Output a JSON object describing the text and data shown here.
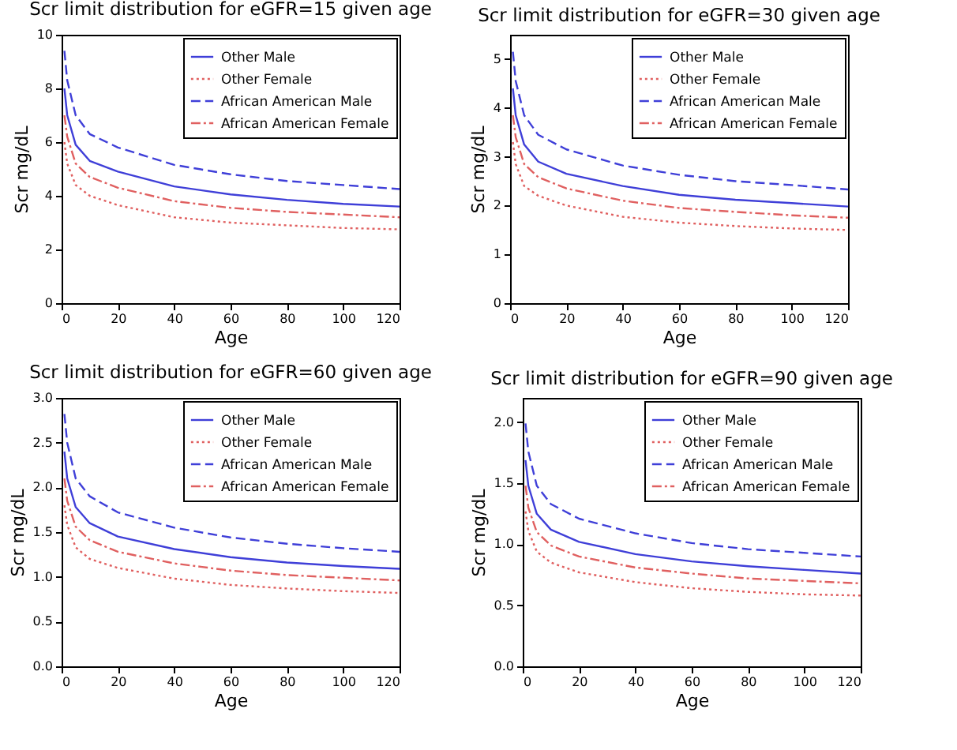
{
  "chart_data": [
    {
      "type": "line",
      "title": "Scr limit distribution for eGFR=15 given age",
      "xlabel": "Age",
      "ylabel": "Scr mg/dL",
      "x": [
        1,
        2,
        5,
        10,
        20,
        40,
        60,
        80,
        100,
        120
      ],
      "xlim": [
        0,
        120
      ],
      "xticks": [
        0,
        20,
        40,
        60,
        80,
        100,
        120
      ],
      "ylim": [
        0,
        10
      ],
      "yticks": [
        0,
        2,
        4,
        6,
        8,
        10
      ],
      "legend": "top right",
      "grid": false,
      "series": [
        {
          "name": "Other Male",
          "color": "#3f3fd8",
          "line_style": "solid",
          "values": [
            8.0,
            7.0,
            5.9,
            5.3,
            4.9,
            4.35,
            4.05,
            3.85,
            3.7,
            3.6
          ]
        },
        {
          "name": "Other Female",
          "color": "#e06060",
          "line_style": "dotted",
          "values": [
            6.0,
            5.2,
            4.4,
            4.0,
            3.65,
            3.2,
            3.0,
            2.9,
            2.8,
            2.75
          ]
        },
        {
          "name": "African American Male",
          "color": "#3f3fd8",
          "line_style": "dashed",
          "values": [
            9.4,
            8.3,
            7.0,
            6.3,
            5.8,
            5.15,
            4.8,
            4.55,
            4.4,
            4.25
          ]
        },
        {
          "name": "African American Female",
          "color": "#e06060",
          "line_style": "dashdot",
          "values": [
            7.0,
            6.2,
            5.2,
            4.7,
            4.3,
            3.8,
            3.55,
            3.4,
            3.3,
            3.2
          ]
        }
      ]
    },
    {
      "type": "line",
      "title": "Scr limit distribution for eGFR=30 given age",
      "xlabel": "Age",
      "ylabel": "Scr mg/dL",
      "x": [
        1,
        2,
        5,
        10,
        20,
        40,
        60,
        80,
        100,
        120
      ],
      "xlim": [
        0,
        120
      ],
      "xticks": [
        0,
        20,
        40,
        60,
        80,
        100,
        120
      ],
      "ylim": [
        0,
        5.5
      ],
      "yticks": [
        0,
        1,
        2,
        3,
        4,
        5
      ],
      "legend": "top right",
      "grid": false,
      "series": [
        {
          "name": "Other Male",
          "color": "#3f3fd8",
          "line_style": "solid",
          "values": [
            4.4,
            3.85,
            3.25,
            2.9,
            2.65,
            2.4,
            2.22,
            2.12,
            2.05,
            1.98
          ]
        },
        {
          "name": "Other Female",
          "color": "#e06060",
          "line_style": "dotted",
          "values": [
            3.3,
            2.85,
            2.4,
            2.2,
            2.0,
            1.77,
            1.65,
            1.58,
            1.53,
            1.5
          ]
        },
        {
          "name": "African American Male",
          "color": "#3f3fd8",
          "line_style": "dashed",
          "values": [
            5.15,
            4.55,
            3.85,
            3.45,
            3.15,
            2.82,
            2.63,
            2.5,
            2.42,
            2.33
          ]
        },
        {
          "name": "African American Female",
          "color": "#e06060",
          "line_style": "dashdot",
          "values": [
            3.85,
            3.4,
            2.85,
            2.58,
            2.35,
            2.1,
            1.95,
            1.87,
            1.8,
            1.75
          ]
        }
      ]
    },
    {
      "type": "line",
      "title": "Scr limit distribution for eGFR=60 given age",
      "xlabel": "Age",
      "ylabel": "Scr mg/dL",
      "x": [
        1,
        2,
        5,
        10,
        20,
        40,
        60,
        80,
        100,
        120
      ],
      "xlim": [
        0,
        120
      ],
      "xticks": [
        0,
        20,
        40,
        60,
        80,
        100,
        120
      ],
      "ylim": [
        0,
        3
      ],
      "yticks": [
        {
          "value": 0,
          "label": "0.0"
        },
        {
          "value": 0.5,
          "label": "0.5"
        },
        {
          "value": 1,
          "label": "1.0"
        },
        {
          "value": 1.5,
          "label": "1.5"
        },
        {
          "value": 2,
          "label": "2.0"
        },
        {
          "value": 2.5,
          "label": "2.5"
        },
        {
          "value": 3,
          "label": "3.0"
        }
      ],
      "legend": "top right",
      "grid": false,
      "series": [
        {
          "name": "Other Male",
          "color": "#3f3fd8",
          "line_style": "solid",
          "values": [
            2.4,
            2.1,
            1.78,
            1.6,
            1.45,
            1.31,
            1.22,
            1.16,
            1.12,
            1.09
          ]
        },
        {
          "name": "Other Female",
          "color": "#e06060",
          "line_style": "dotted",
          "values": [
            1.8,
            1.58,
            1.33,
            1.2,
            1.1,
            0.98,
            0.91,
            0.87,
            0.84,
            0.82
          ]
        },
        {
          "name": "African American Male",
          "color": "#3f3fd8",
          "line_style": "dashed",
          "values": [
            2.82,
            2.5,
            2.1,
            1.9,
            1.72,
            1.55,
            1.44,
            1.37,
            1.32,
            1.28
          ]
        },
        {
          "name": "African American Female",
          "color": "#e06060",
          "line_style": "dashdot",
          "values": [
            2.1,
            1.85,
            1.56,
            1.41,
            1.28,
            1.15,
            1.07,
            1.02,
            0.99,
            0.96
          ]
        }
      ]
    },
    {
      "type": "line",
      "title": "Scr limit distribution for eGFR=90 given age",
      "xlabel": "Age",
      "ylabel": "Scr mg/dL",
      "x": [
        1,
        2,
        5,
        10,
        20,
        40,
        60,
        80,
        100,
        120
      ],
      "xlim": [
        0,
        120
      ],
      "xticks": [
        0,
        20,
        40,
        60,
        80,
        100,
        120
      ],
      "ylim": [
        0,
        2.2
      ],
      "yticks": [
        {
          "value": 0,
          "label": "0.0"
        },
        {
          "value": 0.5,
          "label": "0.5"
        },
        {
          "value": 1,
          "label": "1.0"
        },
        {
          "value": 1.5,
          "label": "1.5"
        },
        {
          "value": 2,
          "label": "2.0"
        }
      ],
      "legend": "top right",
      "grid": false,
      "series": [
        {
          "name": "Other Male",
          "color": "#3f3fd8",
          "line_style": "solid",
          "values": [
            1.69,
            1.48,
            1.25,
            1.12,
            1.02,
            0.92,
            0.86,
            0.82,
            0.79,
            0.76
          ]
        },
        {
          "name": "Other Female",
          "color": "#e06060",
          "line_style": "dotted",
          "values": [
            1.27,
            1.11,
            0.94,
            0.85,
            0.77,
            0.69,
            0.64,
            0.61,
            0.59,
            0.58
          ]
        },
        {
          "name": "African American Male",
          "color": "#3f3fd8",
          "line_style": "dashed",
          "values": [
            1.99,
            1.76,
            1.48,
            1.33,
            1.21,
            1.09,
            1.01,
            0.96,
            0.93,
            0.9
          ]
        },
        {
          "name": "African American Female",
          "color": "#e06060",
          "line_style": "dashdot",
          "values": [
            1.48,
            1.3,
            1.1,
            0.99,
            0.9,
            0.81,
            0.76,
            0.72,
            0.7,
            0.68
          ]
        }
      ]
    }
  ]
}
